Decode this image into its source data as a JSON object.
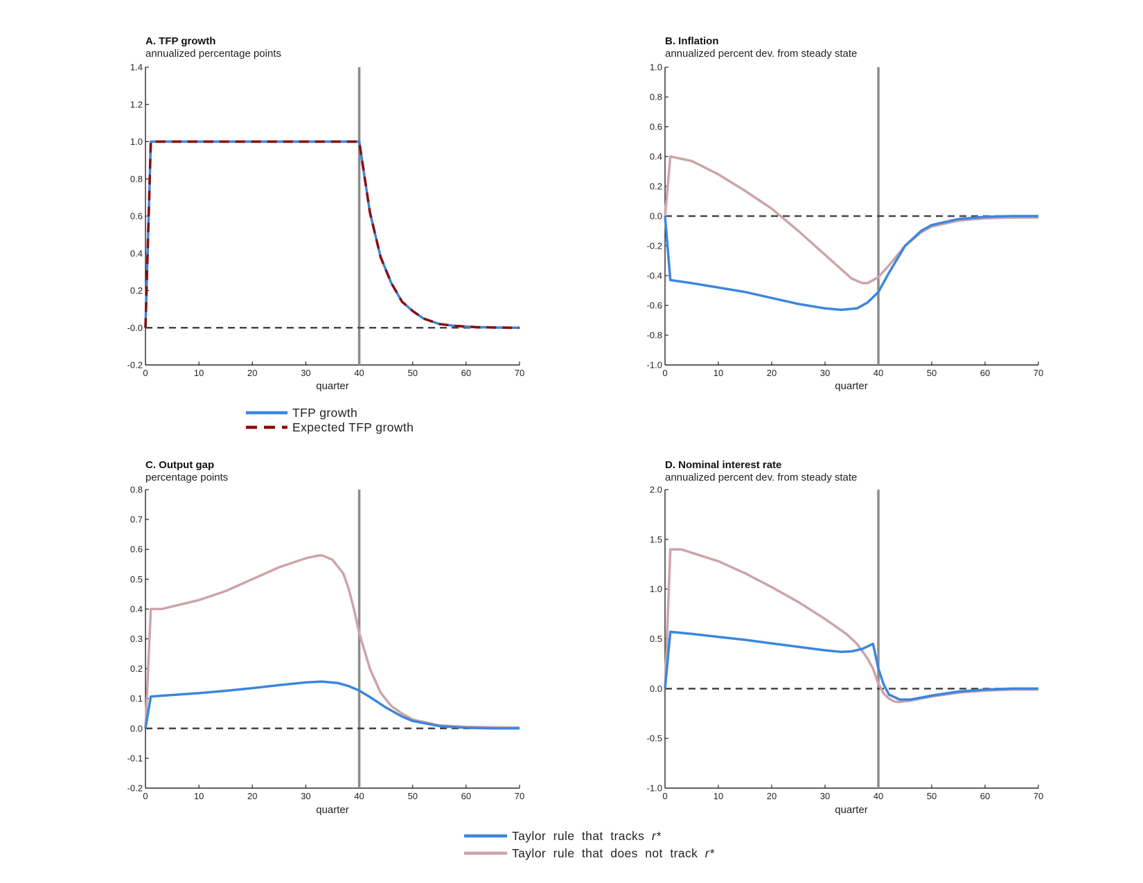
{
  "colors": {
    "blue": "#3b86de",
    "pink": "#cda3a9",
    "darkred": "#8b0d0d",
    "zero_line": "#444444",
    "vline": "#8c8c8c",
    "axis": "#000000"
  },
  "chart_data": [
    {
      "id": "A",
      "type": "line",
      "title": "A. TFP growth",
      "subtitle": "annualized percentage points",
      "xlabel": "quarter",
      "xlim": [
        0,
        70
      ],
      "xticks": [
        0,
        10,
        20,
        30,
        40,
        50,
        60,
        70
      ],
      "ylim": [
        -0.2,
        1.4
      ],
      "yticks": [
        -0.2,
        "-0.0",
        0.2,
        0.4,
        0.6,
        0.8,
        1.0,
        1.2,
        1.4
      ],
      "ytick_labels": [
        "-0.2",
        "-0.0",
        "0.2",
        "0.4",
        "0.6",
        "0.8",
        "1.0",
        "1.2",
        "1.4"
      ],
      "vline_x": 40,
      "zero_line": 0,
      "series": [
        {
          "name": "TFP growth",
          "style": "solid",
          "color": "blue",
          "x": [
            0,
            1,
            40,
            42,
            44,
            46,
            48,
            50,
            52,
            55,
            58,
            62,
            66,
            70
          ],
          "y": [
            0,
            1.0,
            1.0,
            0.62,
            0.38,
            0.24,
            0.14,
            0.09,
            0.05,
            0.02,
            0.01,
            0.003,
            0.001,
            0
          ]
        },
        {
          "name": "Expected TFP growth",
          "style": "dashed",
          "color": "darkred",
          "x": [
            0,
            1,
            40,
            42,
            44,
            46,
            48,
            50,
            52,
            55,
            58,
            62,
            66,
            70
          ],
          "y": [
            0,
            1.0,
            1.0,
            0.62,
            0.38,
            0.24,
            0.14,
            0.09,
            0.05,
            0.02,
            0.01,
            0.003,
            0.001,
            0
          ]
        }
      ]
    },
    {
      "id": "B",
      "type": "line",
      "title": "B. Inflation",
      "subtitle": "annualized percent dev. from steady state",
      "xlabel": "quarter",
      "xlim": [
        0,
        70
      ],
      "xticks": [
        0,
        10,
        20,
        30,
        40,
        50,
        60,
        70
      ],
      "ylim": [
        -1.0,
        1.0
      ],
      "yticks": [
        -1.0,
        -0.8,
        -0.6,
        -0.4,
        -0.2,
        0,
        0.2,
        0.4,
        0.6,
        0.8,
        1.0
      ],
      "ytick_labels": [
        "-1.0",
        "-0.8",
        "-0.6",
        "-0.4",
        "-0.2",
        "0.0",
        "0.2",
        "0.4",
        "0.6",
        "0.8",
        "1.0"
      ],
      "vline_x": 40,
      "zero_line": 0,
      "series": [
        {
          "name": "Taylor rule that does not track r*",
          "style": "solid",
          "color": "pink",
          "x": [
            0,
            1,
            5,
            10,
            15,
            20,
            25,
            30,
            35,
            37,
            38,
            40,
            42,
            45,
            48,
            50,
            55,
            60,
            65,
            70
          ],
          "y": [
            0,
            0.4,
            0.37,
            0.28,
            0.17,
            0.05,
            -0.1,
            -0.26,
            -0.42,
            -0.45,
            -0.45,
            -0.41,
            -0.33,
            -0.2,
            -0.11,
            -0.07,
            -0.03,
            -0.015,
            -0.01,
            -0.01
          ]
        },
        {
          "name": "Taylor rule that tracks r*",
          "style": "solid",
          "color": "blue",
          "x": [
            0,
            1,
            5,
            10,
            15,
            20,
            25,
            30,
            33,
            36,
            38,
            40,
            42,
            45,
            48,
            50,
            55,
            60,
            65,
            70
          ],
          "y": [
            0,
            -0.43,
            -0.45,
            -0.48,
            -0.51,
            -0.55,
            -0.59,
            -0.62,
            -0.63,
            -0.62,
            -0.58,
            -0.51,
            -0.38,
            -0.2,
            -0.1,
            -0.06,
            -0.02,
            -0.005,
            0,
            0
          ]
        }
      ]
    },
    {
      "id": "C",
      "type": "line",
      "title": "C. Output gap",
      "subtitle": "percentage points",
      "xlabel": "quarter",
      "xlim": [
        0,
        70
      ],
      "xticks": [
        0,
        10,
        20,
        30,
        40,
        50,
        60,
        70
      ],
      "ylim": [
        -0.2,
        0.8
      ],
      "yticks": [
        -0.2,
        -0.1,
        0,
        0.1,
        0.2,
        0.3,
        0.4,
        0.5,
        0.6,
        0.7,
        0.8
      ],
      "ytick_labels": [
        "-0.2",
        "-0.1",
        "0.0",
        "0.1",
        "0.2",
        "0.3",
        "0.4",
        "0.5",
        "0.6",
        "0.7",
        "0.8"
      ],
      "vline_x": 40,
      "zero_line": 0,
      "series": [
        {
          "name": "Taylor rule that does not track r*",
          "style": "solid",
          "color": "pink",
          "x": [
            0,
            1,
            3,
            10,
            15,
            20,
            25,
            30,
            32,
            33,
            35,
            37,
            38,
            39,
            40,
            42,
            44,
            46,
            48,
            50,
            55,
            60,
            65,
            70
          ],
          "y": [
            0,
            0.4,
            0.4,
            0.43,
            0.46,
            0.5,
            0.54,
            0.57,
            0.578,
            0.58,
            0.565,
            0.52,
            0.47,
            0.4,
            0.32,
            0.2,
            0.12,
            0.075,
            0.05,
            0.03,
            0.01,
            0.005,
            0.004,
            0.003
          ]
        },
        {
          "name": "Taylor rule that tracks r*",
          "style": "solid",
          "color": "blue",
          "x": [
            0,
            1,
            5,
            10,
            15,
            20,
            25,
            30,
            33,
            36,
            38,
            40,
            42,
            45,
            48,
            50,
            55,
            60,
            65,
            70
          ],
          "y": [
            0,
            0.107,
            0.112,
            0.118,
            0.126,
            0.135,
            0.145,
            0.154,
            0.157,
            0.152,
            0.142,
            0.127,
            0.105,
            0.07,
            0.04,
            0.025,
            0.008,
            0.002,
            0,
            0
          ]
        }
      ]
    },
    {
      "id": "D",
      "type": "line",
      "title": "D. Nominal interest rate",
      "subtitle": "annualized percent dev. from steady state",
      "xlabel": "quarter",
      "xlim": [
        0,
        70
      ],
      "xticks": [
        0,
        10,
        20,
        30,
        40,
        50,
        60,
        70
      ],
      "ylim": [
        -1.0,
        2.0
      ],
      "yticks": [
        -1.0,
        -0.5,
        0,
        0.5,
        1.0,
        1.5,
        2.0
      ],
      "ytick_labels": [
        "-1.0",
        "-0.5",
        "0.0",
        "0.5",
        "1.0",
        "1.5",
        "2.0"
      ],
      "vline_x": 40,
      "zero_line": 0,
      "series": [
        {
          "name": "Taylor rule that does not track r*",
          "style": "solid",
          "color": "pink",
          "x": [
            0,
            1,
            3,
            10,
            15,
            20,
            25,
            30,
            34,
            36,
            38,
            39,
            40,
            41,
            42,
            43,
            44,
            46,
            48,
            50,
            55,
            60,
            65,
            70
          ],
          "y": [
            0,
            1.4,
            1.4,
            1.28,
            1.16,
            1.02,
            0.87,
            0.7,
            0.55,
            0.45,
            0.3,
            0.2,
            0.05,
            -0.05,
            -0.1,
            -0.13,
            -0.135,
            -0.12,
            -0.1,
            -0.08,
            -0.04,
            -0.02,
            -0.01,
            -0.01
          ]
        },
        {
          "name": "Taylor rule that tracks r*",
          "style": "solid",
          "color": "blue",
          "x": [
            0,
            1,
            5,
            10,
            15,
            20,
            25,
            30,
            33,
            35,
            37,
            39,
            40,
            41,
            42,
            44,
            46,
            48,
            50,
            55,
            60,
            65,
            70
          ],
          "y": [
            0,
            0.57,
            0.55,
            0.52,
            0.49,
            0.455,
            0.42,
            0.385,
            0.37,
            0.375,
            0.4,
            0.45,
            0.2,
            0.04,
            -0.06,
            -0.11,
            -0.11,
            -0.09,
            -0.07,
            -0.03,
            -0.01,
            0,
            0
          ]
        }
      ]
    }
  ],
  "legend_tfp": {
    "items": [
      {
        "label": "TFP growth",
        "color": "blue",
        "style": "solid"
      },
      {
        "label": "Expected TFP growth",
        "color": "darkred",
        "style": "dashed"
      }
    ]
  },
  "legend_rules": {
    "items": [
      {
        "prefix": "Taylor  rule  that  tracks  ",
        "italic": "r*",
        "color": "blue"
      },
      {
        "prefix": "Taylor  rule  that  does  not  track  ",
        "italic": "r*",
        "color": "pink"
      }
    ]
  }
}
